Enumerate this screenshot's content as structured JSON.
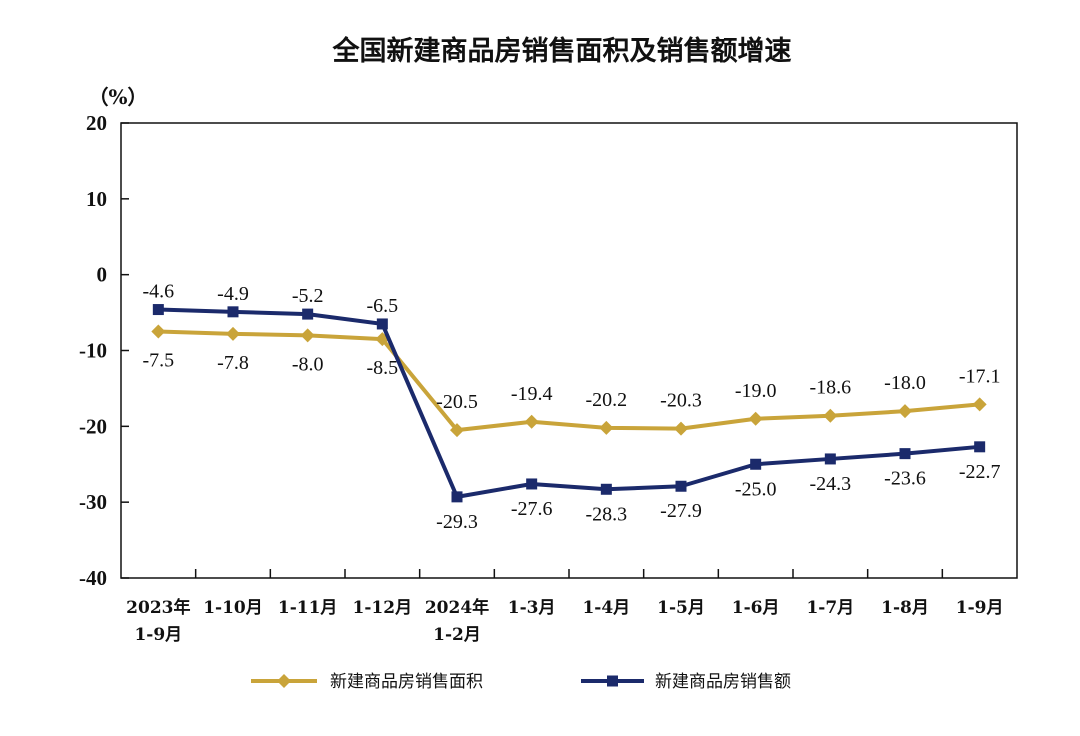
{
  "chart_data": {
    "type": "line",
    "title": "全国新建商品房销售面积及销售额增速",
    "ylabel": "（%）",
    "xlabel": "",
    "ylim": [
      -40,
      20
    ],
    "yticks": [
      "20",
      "10",
      "0",
      "-10",
      "-20",
      "-30",
      "-40"
    ],
    "ytick_values": [
      20,
      10,
      0,
      -10,
      -20,
      -30,
      -40
    ],
    "grid": false,
    "legend_position": "bottom",
    "categories": [
      [
        "2023年",
        "1-9月"
      ],
      [
        "1-10月"
      ],
      [
        "1-11月"
      ],
      [
        "1-12月"
      ],
      [
        "2024年",
        "1-2月"
      ],
      [
        "1-3月"
      ],
      [
        "1-4月"
      ],
      [
        "1-5月"
      ],
      [
        "1-6月"
      ],
      [
        "1-7月"
      ],
      [
        "1-8月"
      ],
      [
        "1-9月"
      ]
    ],
    "series": [
      {
        "name": "新建商品房销售面积",
        "color": "#C9A43A",
        "marker": "diamond",
        "values": [
          -7.5,
          -7.8,
          -8.0,
          -8.5,
          -20.5,
          -19.4,
          -20.2,
          -20.3,
          -19.0,
          -18.6,
          -18.0,
          -17.1
        ],
        "labels": [
          "-7.5",
          "-7.8",
          "-8.0",
          "-8.5",
          "-20.5",
          "-19.4",
          "-20.2",
          "-20.3",
          "-19.0",
          "-18.6",
          "-18.0",
          "-17.1"
        ]
      },
      {
        "name": "新建商品房销售额",
        "color": "#1B2A6B",
        "marker": "square",
        "values": [
          -4.6,
          -4.9,
          -5.2,
          -6.5,
          -29.3,
          -27.6,
          -28.3,
          -27.9,
          -25.0,
          -24.3,
          -23.6,
          -22.7
        ],
        "labels": [
          "-4.6",
          "-4.9",
          "-5.2",
          "-6.5",
          "-29.3",
          "-27.6",
          "-28.3",
          "-27.9",
          "-25.0",
          "-24.3",
          "-23.6",
          "-22.7"
        ]
      }
    ]
  }
}
